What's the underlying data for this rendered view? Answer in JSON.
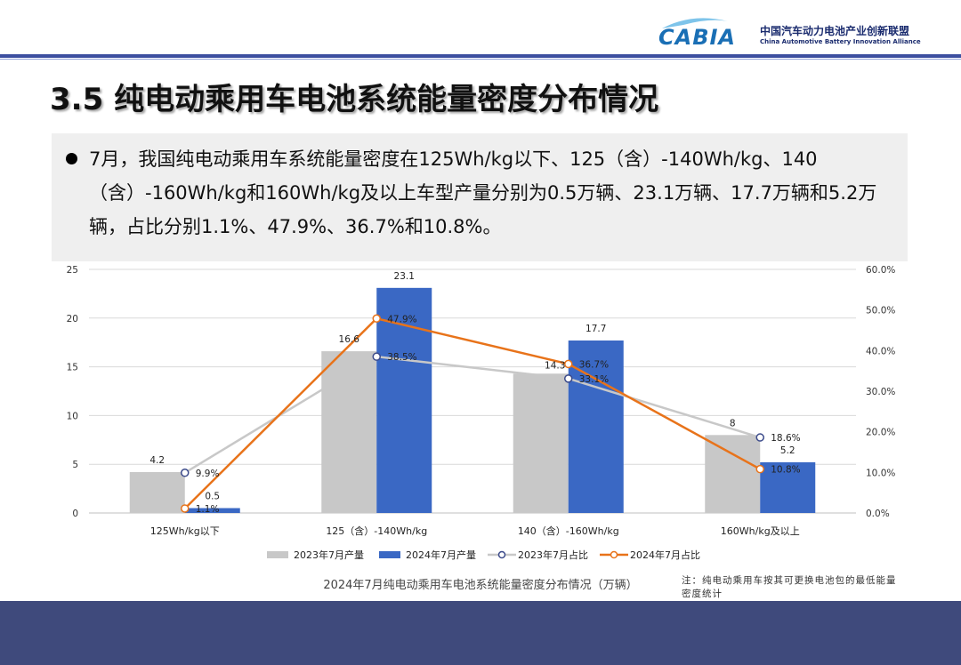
{
  "header": {
    "logo_text": "CABIA",
    "org_name_cn": "中国汽车动力电池产业创新联盟",
    "org_name_en": "China Automotive Battery Innovation Alliance",
    "accent_color": "#3c4fa0",
    "logo_color": "#1a6fb5"
  },
  "page": {
    "title": "3.5 纯电动乘用车电池系统能量密度分布情况",
    "paragraph": "7月，我国纯电动乘用车系统能量密度在125Wh/kg以下、125（含）-140Wh/kg、140（含）-160Wh/kg和160Wh/kg及以上车型产量分别为0.5万辆、23.1万辆、17.7万辆和5.2万辆，占比分别1.1%、47.9%、36.7%和10.8%。",
    "footnote": "注：纯电动乘用车按其可更换电池包的最低能量密度统计",
    "footer_color": "#3f4a7c"
  },
  "chart_data": {
    "type": "bar",
    "title": "2024年7月纯电动乘用车电池系统能量密度分布情况（万辆）",
    "categories": [
      "125Wh/kg以下",
      "125（含）-140Wh/kg",
      "140（含）-160Wh/kg",
      "160Wh/kg及以上"
    ],
    "y_left": {
      "ticks": [
        "0",
        "5",
        "10",
        "15",
        "20",
        "25"
      ],
      "ylim": [
        0,
        25
      ]
    },
    "y_right": {
      "ticks": [
        "0.0%",
        "10.0%",
        "20.0%",
        "30.0%",
        "40.0%",
        "50.0%",
        "60.0%"
      ],
      "ylim": [
        0,
        60
      ]
    },
    "grid": true,
    "legend_position": "bottom",
    "series": [
      {
        "name": "2023年7月产量",
        "kind": "bar",
        "axis": "left",
        "color": "#c8c8c8",
        "values": [
          4.2,
          16.6,
          14.3,
          8
        ],
        "labels": [
          "4.2",
          "16.6",
          "14.3",
          "8"
        ]
      },
      {
        "name": "2024年7月产量",
        "kind": "bar",
        "axis": "left",
        "color": "#3a68c4",
        "values": [
          0.5,
          23.1,
          17.7,
          5.2
        ],
        "labels": [
          "0.5",
          "23.1",
          "17.7",
          "5.2"
        ]
      },
      {
        "name": "2023年7月占比",
        "kind": "line",
        "axis": "right",
        "color": "#c8c8c8",
        "values": [
          9.9,
          38.5,
          33.1,
          18.6
        ],
        "labels": [
          "9.9%",
          "38.5%",
          "33.1%",
          "18.6%"
        ]
      },
      {
        "name": "2024年7月占比",
        "kind": "line",
        "axis": "right",
        "color": "#e8731a",
        "values": [
          1.1,
          47.9,
          36.7,
          10.8
        ],
        "labels": [
          "1.1%",
          "47.9%",
          "36.7%",
          "10.8%"
        ]
      }
    ]
  }
}
